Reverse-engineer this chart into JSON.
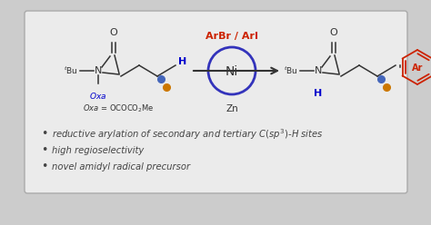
{
  "background_outer": "#cccccc",
  "background_inner": "#ebebeb",
  "bullet_points": [
    "reductive arylation of secondary and tertiary $C(sp^3)$-$H$ sites",
    "high regioselectivity",
    "novel amidyl radical precursor"
  ],
  "bullet_color": "#444444",
  "bullet_fontsize": 7.2,
  "ni_circle_color": "#3333bb",
  "arrow_color": "#333333",
  "arbr_color": "#cc2200",
  "oxa_color": "#0000cc",
  "h_color": "#0000cc",
  "ar_color": "#cc2200",
  "tbu_color": "#333333",
  "bond_color": "#333333",
  "dot_blue": "#4466bb",
  "dot_orange": "#cc7700"
}
